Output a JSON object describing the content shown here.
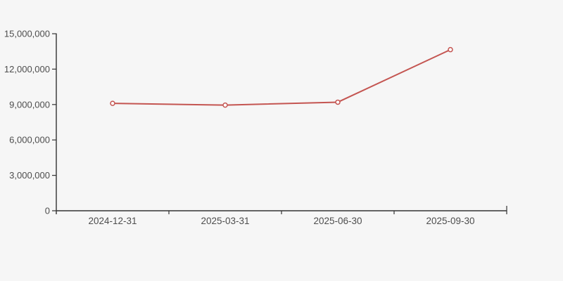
{
  "chart_data": {
    "type": "line",
    "title": "",
    "xlabel": "",
    "ylabel": "",
    "categories": [
      "2024-12-31",
      "2025-03-31",
      "2025-06-30",
      "2025-09-30"
    ],
    "series": [
      {
        "name": "value",
        "values": [
          9100000,
          8950000,
          9200000,
          13650000
        ]
      }
    ],
    "ylim": [
      0,
      15000000
    ],
    "y_tick_step": 3000000,
    "y_tick_labels": [
      "0",
      "3,000,000",
      "6,000,000",
      "9,000,000",
      "12,000,000",
      "15,000,000"
    ],
    "grid": "off",
    "legend": "none",
    "marker": "open-circle",
    "colors": {
      "line": "#c45551",
      "marker_fill": "#ffffff",
      "axis": "#333333",
      "tick_label": "#4d4d4d",
      "background": "#f6f6f6"
    }
  }
}
